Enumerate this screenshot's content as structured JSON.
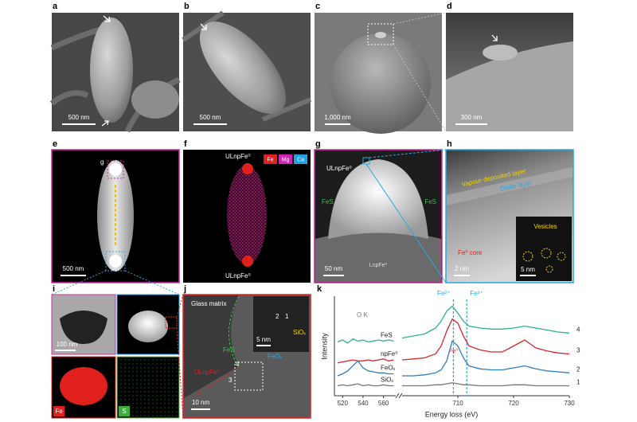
{
  "panels": {
    "a": {
      "letter": "a",
      "scale": "500 nm"
    },
    "b": {
      "letter": "b",
      "scale": "500 nm"
    },
    "c": {
      "letter": "c",
      "scale": "1,000 nm"
    },
    "d": {
      "letter": "d",
      "scale": "300 nm"
    },
    "e": {
      "letter": "e",
      "inset_label": "g",
      "scale": "500 nm"
    },
    "f": {
      "letter": "f",
      "legend": [
        "Fe",
        "Mg",
        "Ca"
      ],
      "labels": [
        "ULnpFe⁰",
        "ULnpFe⁰"
      ]
    },
    "g": {
      "letter": "g",
      "labels": [
        "ULnpFe⁰",
        "FeS",
        "FeS",
        "LnpFe⁰"
      ],
      "scale": "50 nm"
    },
    "h": {
      "letter": "h",
      "labels": [
        "Vapour-deposited layer",
        "Oxide layer",
        "Fe⁰ core",
        "Vesicles"
      ],
      "scale": "2 nm",
      "inset_scale": "5 nm"
    },
    "i": {
      "letter": "i",
      "scale": "100 nm",
      "maps": [
        "Fe",
        "S"
      ]
    },
    "j": {
      "letter": "j",
      "labels": [
        "Glass matrix",
        "FeS",
        "ULnpFe⁰",
        "4",
        "3",
        "2",
        "1",
        "SiOₓ",
        "FeOₓ"
      ],
      "scale": "10 nm",
      "inset_scale": "5 nm"
    },
    "k": {
      "letter": "k"
    }
  },
  "chart_data": {
    "type": "line",
    "xlabel": "Energy loss (eV)",
    "ylabel": "Intensity",
    "xlim": [
      [
        512,
        572
      ],
      [
        700,
        730
      ]
    ],
    "ylim": [
      0,
      10
    ],
    "xticks": [
      520,
      540,
      560,
      710,
      720,
      730
    ],
    "x": [
      515,
      520,
      525,
      530,
      535,
      540,
      545,
      550,
      555,
      560,
      565,
      570,
      700,
      702,
      704,
      706,
      707,
      708,
      709,
      710,
      711,
      712,
      714,
      716,
      718,
      720,
      722,
      724,
      726,
      728,
      730
    ],
    "series": [
      {
        "name": "FeS",
        "end_label": "4",
        "color": "#2bb38f",
        "values": [
          5.4,
          5.6,
          5.3,
          5.7,
          5.5,
          5.6,
          5.4,
          5.5,
          5.6,
          5.5,
          5.6,
          5.5,
          5.8,
          6.0,
          6.2,
          6.8,
          7.5,
          8.5,
          9.0,
          8.3,
          7.5,
          7.0,
          6.8,
          6.7,
          6.7,
          6.8,
          7.0,
          6.8,
          6.6,
          6.4,
          6.3
        ]
      },
      {
        "name": "npFe⁰",
        "end_label": "3",
        "color": "#d7262b",
        "values": [
          3.3,
          3.4,
          3.5,
          3.6,
          3.5,
          3.5,
          3.6,
          3.5,
          3.6,
          3.7,
          3.5,
          3.6,
          3.6,
          3.7,
          3.8,
          4.2,
          5.0,
          6.5,
          7.7,
          7.3,
          6.0,
          5.0,
          4.6,
          4.4,
          4.4,
          5.0,
          5.6,
          4.8,
          4.5,
          4.3,
          4.2
        ]
      },
      {
        "name": "FeOₓ",
        "end_label": "2",
        "color": "#2f7fc1",
        "values": [
          2.0,
          2.2,
          2.5,
          3.0,
          3.5,
          2.8,
          2.5,
          2.4,
          2.3,
          2.3,
          2.2,
          2.2,
          2.0,
          2.0,
          2.1,
          2.3,
          2.6,
          3.5,
          5.5,
          5.0,
          3.8,
          3.0,
          2.7,
          2.6,
          2.6,
          2.8,
          3.0,
          2.7,
          2.5,
          2.4,
          2.3
        ]
      },
      {
        "name": "SiOₓ",
        "end_label": "1",
        "color": "#777777",
        "values": [
          1.0,
          1.1,
          1.0,
          1.1,
          1.2,
          1.0,
          1.1,
          1.0,
          1.0,
          1.1,
          1.0,
          1.0,
          1.0,
          1.0,
          1.0,
          1.1,
          1.1,
          1.2,
          1.3,
          1.2,
          1.1,
          1.1,
          1.0,
          1.0,
          1.0,
          1.1,
          1.1,
          1.0,
          1.0,
          1.0,
          1.0
        ]
      }
    ],
    "annotations": [
      {
        "label": "Fe²⁺",
        "x": 709.2,
        "color": "#29a9e0"
      },
      {
        "label": "Fe³⁺",
        "x": 711.6,
        "color": "#29a9e0"
      }
    ],
    "texts": [
      "O K",
      "Fe⁰"
    ]
  }
}
